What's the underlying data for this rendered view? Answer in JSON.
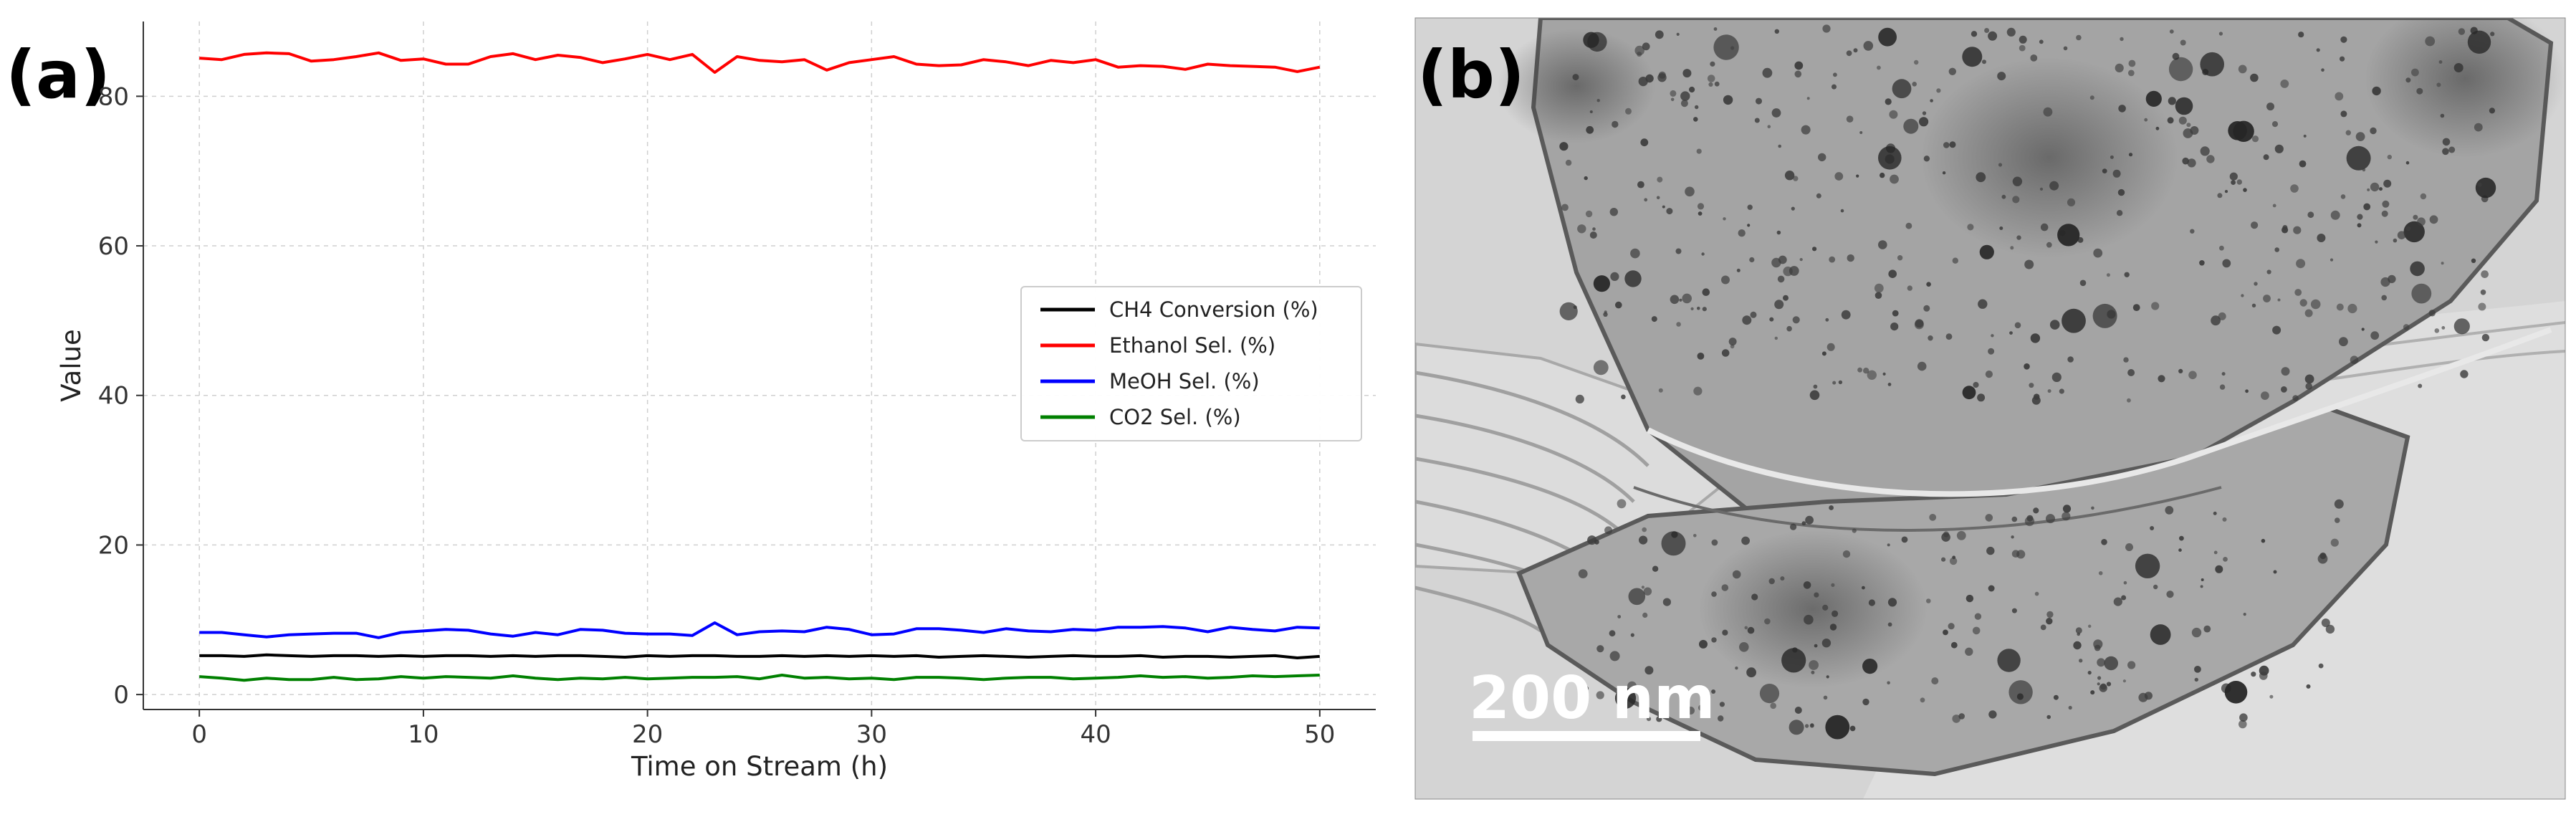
{
  "panels": {
    "a_label": "(a)",
    "b_label": "(b)"
  },
  "chart_data": {
    "type": "line",
    "xlabel": "Time on Stream (h)",
    "ylabel": "Value",
    "xlim": [
      -2.5,
      52.5
    ],
    "ylim": [
      -2,
      90
    ],
    "xticks": [
      0,
      10,
      20,
      30,
      40,
      50
    ],
    "yticks": [
      0,
      20,
      40,
      60,
      80
    ],
    "grid": true,
    "legend_position": "center-right",
    "x": [
      0,
      1,
      2,
      3,
      4,
      5,
      6,
      7,
      8,
      9,
      10,
      11,
      12,
      13,
      14,
      15,
      16,
      17,
      18,
      19,
      20,
      21,
      22,
      23,
      24,
      25,
      26,
      27,
      28,
      29,
      30,
      31,
      32,
      33,
      34,
      35,
      36,
      37,
      38,
      39,
      40,
      41,
      42,
      43,
      44,
      45,
      46,
      47,
      48,
      49,
      50
    ],
    "series": [
      {
        "name": "CH4 Conversion (%)",
        "color": "#000000",
        "values": [
          5.2,
          5.2,
          5.1,
          5.3,
          5.2,
          5.1,
          5.2,
          5.2,
          5.1,
          5.2,
          5.1,
          5.2,
          5.2,
          5.1,
          5.2,
          5.1,
          5.2,
          5.2,
          5.1,
          5.0,
          5.2,
          5.1,
          5.2,
          5.2,
          5.1,
          5.1,
          5.2,
          5.1,
          5.2,
          5.1,
          5.2,
          5.1,
          5.2,
          5.0,
          5.1,
          5.2,
          5.1,
          5.0,
          5.1,
          5.2,
          5.1,
          5.1,
          5.2,
          5.0,
          5.1,
          5.1,
          5.0,
          5.1,
          5.2,
          4.9,
          5.1
        ]
      },
      {
        "name": "Ethanol Sel. (%)",
        "color": "#ff0000",
        "values": [
          85.1,
          84.9,
          85.6,
          85.8,
          85.7,
          84.7,
          84.9,
          85.3,
          85.8,
          84.8,
          85.0,
          84.3,
          84.3,
          85.3,
          85.7,
          84.9,
          85.5,
          85.2,
          84.5,
          85.0,
          85.6,
          84.9,
          85.6,
          83.2,
          85.3,
          84.8,
          84.6,
          84.9,
          83.5,
          84.5,
          84.9,
          85.3,
          84.3,
          84.1,
          84.2,
          84.9,
          84.6,
          84.1,
          84.8,
          84.5,
          84.9,
          83.9,
          84.1,
          84.0,
          83.6,
          84.3,
          84.1,
          84.0,
          83.9,
          83.3,
          83.9
        ]
      },
      {
        "name": "MeOH Sel. (%)",
        "color": "#0000ff",
        "values": [
          8.3,
          8.3,
          8.0,
          7.7,
          8.0,
          8.1,
          8.2,
          8.2,
          7.6,
          8.3,
          8.5,
          8.7,
          8.6,
          8.1,
          7.8,
          8.3,
          8.0,
          8.7,
          8.6,
          8.2,
          8.1,
          8.1,
          7.9,
          9.6,
          8.0,
          8.4,
          8.5,
          8.4,
          9.0,
          8.7,
          8.0,
          8.1,
          8.8,
          8.8,
          8.6,
          8.3,
          8.8,
          8.5,
          8.4,
          8.7,
          8.6,
          9.0,
          9.0,
          9.1,
          8.9,
          8.4,
          9.0,
          8.7,
          8.5,
          9.0,
          8.9
        ]
      },
      {
        "name": "CO2 Sel. (%)",
        "color": "#008000",
        "values": [
          2.4,
          2.2,
          1.9,
          2.2,
          2.0,
          2.0,
          2.3,
          2.0,
          2.1,
          2.4,
          2.2,
          2.4,
          2.3,
          2.2,
          2.5,
          2.2,
          2.0,
          2.2,
          2.1,
          2.3,
          2.1,
          2.2,
          2.3,
          2.3,
          2.4,
          2.1,
          2.6,
          2.2,
          2.3,
          2.1,
          2.2,
          2.0,
          2.3,
          2.3,
          2.2,
          2.0,
          2.2,
          2.3,
          2.3,
          2.1,
          2.2,
          2.3,
          2.5,
          2.3,
          2.4,
          2.2,
          2.3,
          2.5,
          2.4,
          2.5,
          2.6
        ]
      }
    ]
  },
  "micrograph": {
    "scale_bar_label": "200 nm"
  }
}
